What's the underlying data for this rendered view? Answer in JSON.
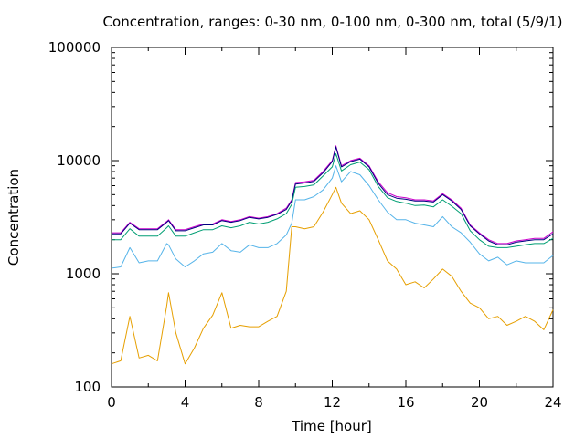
{
  "chart_data": {
    "type": "line",
    "title": "Concentration, ranges: 0-30 nm, 0-100 nm, 0-300 nm, total (5/9/1)",
    "xlabel": "Time [hour]",
    "ylabel": "Concentration",
    "xlim": [
      0,
      24
    ],
    "ylim": [
      100,
      100000
    ],
    "yscale": "log",
    "grid": false,
    "legend": "none",
    "x_ticks": [
      0,
      4,
      8,
      12,
      16,
      20,
      24
    ],
    "x_tick_labels": [
      "0",
      "4",
      "8",
      "12",
      "16",
      "20",
      "24"
    ],
    "y_ticks": [
      100,
      1000,
      10000,
      100000
    ],
    "y_tick_labels": [
      "100",
      "1000",
      "10000",
      "100000"
    ],
    "x": [
      0,
      0.5,
      1,
      1.5,
      2,
      2.5,
      3,
      3.1,
      3.5,
      4,
      4.5,
      5,
      5.5,
      6,
      6.5,
      7,
      7.5,
      8,
      8.5,
      9,
      9.5,
      9.8,
      10,
      10.5,
      11,
      11.5,
      12,
      12.2,
      12.5,
      13,
      13.5,
      14,
      14.5,
      15,
      15.5,
      16,
      16.5,
      17,
      17.5,
      18,
      18.5,
      19,
      19.5,
      20,
      20.5,
      21,
      21.5,
      22,
      22.5,
      23,
      23.5,
      24
    ],
    "series": [
      {
        "color": "#cc00cc",
        "values": [
          2300,
          2300,
          2850,
          2500,
          2500,
          2500,
          2900,
          3000,
          2450,
          2450,
          2600,
          2750,
          2750,
          3000,
          2900,
          3000,
          3200,
          3100,
          3200,
          3400,
          3800,
          4500,
          6400,
          6500,
          6700,
          8000,
          10000,
          13500,
          9000,
          10000,
          10500,
          9000,
          6500,
          5200,
          4800,
          4700,
          4500,
          4500,
          4400,
          5100,
          4500,
          3800,
          2700,
          2300,
          2000,
          1850,
          1850,
          1950,
          2000,
          2050,
          2050,
          2350
        ]
      },
      {
        "color": "#000080",
        "values": [
          2250,
          2250,
          2800,
          2450,
          2450,
          2450,
          2850,
          2950,
          2400,
          2400,
          2550,
          2700,
          2700,
          2950,
          2850,
          2950,
          3150,
          3050,
          3150,
          3350,
          3700,
          4400,
          6200,
          6350,
          6550,
          7800,
          9800,
          13200,
          8800,
          9800,
          10300,
          8800,
          6300,
          5000,
          4650,
          4550,
          4400,
          4400,
          4300,
          5000,
          4400,
          3700,
          2650,
          2250,
          1950,
          1800,
          1800,
          1900,
          1950,
          2000,
          2000,
          2250
        ]
      },
      {
        "color": "#009e73",
        "values": [
          2000,
          2000,
          2500,
          2150,
          2150,
          2150,
          2550,
          2650,
          2150,
          2150,
          2300,
          2450,
          2450,
          2650,
          2550,
          2650,
          2850,
          2750,
          2850,
          3050,
          3400,
          4100,
          5800,
          5900,
          6100,
          7300,
          8800,
          11500,
          8100,
          9200,
          9700,
          8300,
          5900,
          4700,
          4350,
          4200,
          4000,
          4050,
          3900,
          4500,
          3950,
          3400,
          2400,
          2000,
          1750,
          1700,
          1700,
          1750,
          1800,
          1850,
          1850,
          2050
        ]
      },
      {
        "color": "#56b4e9",
        "values": [
          1120,
          1150,
          1700,
          1250,
          1300,
          1300,
          1850,
          1800,
          1350,
          1150,
          1300,
          1500,
          1550,
          1850,
          1600,
          1550,
          1800,
          1700,
          1700,
          1850,
          2200,
          2800,
          4500,
          4500,
          4800,
          5500,
          7000,
          9000,
          6500,
          8000,
          7500,
          6000,
          4500,
          3500,
          3000,
          3000,
          2800,
          2700,
          2600,
          3200,
          2600,
          2300,
          1900,
          1500,
          1300,
          1400,
          1200,
          1300,
          1250,
          1250,
          1250,
          1450
        ]
      },
      {
        "color": "#e69f00",
        "values": [
          160,
          170,
          420,
          180,
          190,
          170,
          520,
          680,
          300,
          160,
          220,
          330,
          430,
          680,
          330,
          350,
          340,
          340,
          380,
          420,
          700,
          2600,
          2600,
          2500,
          2600,
          3500,
          5000,
          5800,
          4200,
          3400,
          3600,
          3000,
          2000,
          1300,
          1100,
          800,
          850,
          750,
          900,
          1100,
          950,
          700,
          550,
          500,
          400,
          420,
          350,
          380,
          420,
          380,
          320,
          480
        ]
      }
    ]
  }
}
